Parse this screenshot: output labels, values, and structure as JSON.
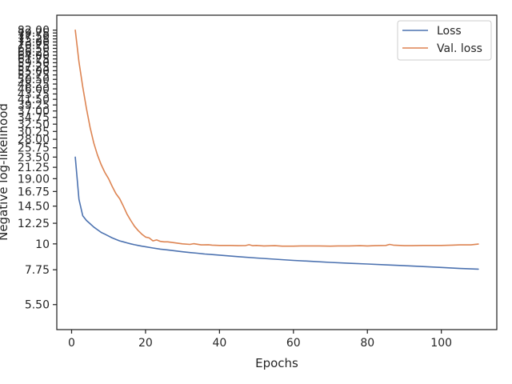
{
  "chart_data": {
    "type": "line",
    "title": "",
    "xlabel": "Epochs",
    "ylabel": "Negative log-likelihood",
    "y_scale": "log",
    "xlim": [
      -4,
      115
    ],
    "ylim": [
      4.3,
      95
    ],
    "grid": false,
    "legend_placement": "top-right",
    "x_ticks": [
      0,
      20,
      40,
      60,
      80,
      100
    ],
    "x_tick_labels": [
      "0",
      "20",
      "40",
      "60",
      "80",
      "100"
    ],
    "y_ticks": [
      5.5,
      7.75,
      10,
      12.25,
      14.5,
      16.75,
      19,
      21.25,
      23.5,
      25.75,
      28,
      30.25,
      32.5,
      34.75,
      37,
      39.25,
      41.5,
      43.75,
      46,
      48.25,
      50.5,
      52.75,
      55,
      57.25,
      59.5,
      61.75,
      64,
      66.25,
      68.5,
      70.75,
      73,
      75.25,
      77.5,
      79.75,
      82
    ],
    "y_tick_labels": [
      "5.50",
      "7.75",
      "10",
      "12.25",
      "14.50",
      "16.75",
      "19.00",
      "21.25",
      "23.50",
      "25.75",
      "28.00",
      "30.25",
      "32.50",
      "34.75",
      "37.00",
      "39.25",
      "41.50",
      "43.75",
      "46.00",
      "48.25",
      "50.50",
      "52.75",
      "55.00",
      "57.25",
      "59.50",
      "61.75",
      "64.00",
      "66.25",
      "68.50",
      "70.75",
      "73.00",
      "75.25",
      "77.50",
      "79.75",
      "82.00"
    ],
    "series": [
      {
        "name": "Loss",
        "color": "#4c72b0",
        "x": [
          1,
          2,
          3,
          4,
          5,
          6,
          7,
          8,
          9,
          10,
          11,
          12,
          13,
          14,
          15,
          16,
          17,
          18,
          19,
          20,
          22,
          24,
          26,
          28,
          30,
          32,
          34,
          36,
          38,
          40,
          45,
          50,
          55,
          60,
          65,
          70,
          75,
          80,
          85,
          90,
          95,
          100,
          105,
          110
        ],
        "y": [
          23.5,
          15.5,
          13.2,
          12.6,
          12.2,
          11.8,
          11.5,
          11.2,
          11.0,
          10.8,
          10.6,
          10.45,
          10.3,
          10.2,
          10.1,
          10.0,
          9.92,
          9.85,
          9.78,
          9.72,
          9.6,
          9.5,
          9.42,
          9.33,
          9.25,
          9.18,
          9.12,
          9.05,
          9.0,
          8.95,
          8.82,
          8.7,
          8.6,
          8.5,
          8.42,
          8.33,
          8.26,
          8.2,
          8.13,
          8.07,
          8.0,
          7.93,
          7.85,
          7.8
        ]
      },
      {
        "name": "Val. loss",
        "color": "#dd8452",
        "x": [
          1,
          2,
          3,
          4,
          5,
          6,
          7,
          8,
          9,
          10,
          11,
          12,
          13,
          14,
          15,
          16,
          17,
          18,
          19,
          20,
          21,
          22,
          23,
          24,
          25,
          26,
          28,
          30,
          32,
          33,
          35,
          37,
          38,
          40,
          43,
          45,
          47,
          48,
          49,
          50,
          52,
          55,
          57,
          60,
          62,
          65,
          67,
          70,
          72,
          75,
          78,
          80,
          82,
          85,
          86,
          87,
          90,
          92,
          95,
          98,
          100,
          103,
          105,
          108,
          110
        ],
        "y": [
          82.0,
          60.0,
          47.0,
          38.0,
          31.5,
          27.0,
          24.0,
          21.8,
          20.2,
          19.0,
          17.6,
          16.4,
          15.6,
          14.5,
          13.4,
          12.6,
          11.9,
          11.4,
          11.0,
          10.7,
          10.6,
          10.3,
          10.4,
          10.25,
          10.2,
          10.2,
          10.1,
          10.0,
          9.95,
          10.02,
          9.9,
          9.92,
          9.88,
          9.85,
          9.85,
          9.82,
          9.83,
          9.92,
          9.82,
          9.85,
          9.8,
          9.82,
          9.78,
          9.78,
          9.8,
          9.8,
          9.8,
          9.78,
          9.8,
          9.8,
          9.82,
          9.8,
          9.82,
          9.85,
          9.95,
          9.88,
          9.82,
          9.82,
          9.85,
          9.85,
          9.85,
          9.88,
          9.9,
          9.9,
          9.98
        ]
      }
    ]
  }
}
